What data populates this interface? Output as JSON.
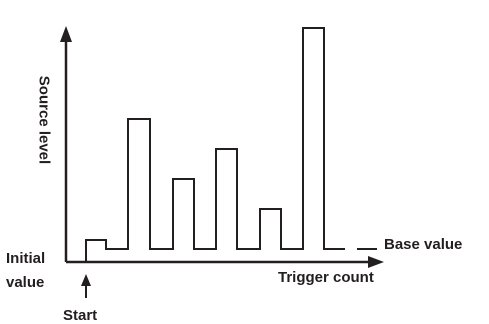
{
  "labels": {
    "y_axis": "Source level",
    "x_axis": "Trigger count",
    "initial_line1": "Initial",
    "initial_line2": "value",
    "base_value": "Base value",
    "start": "Start"
  },
  "colors": {
    "line": "#231f20",
    "background": "#ffffff"
  }
}
